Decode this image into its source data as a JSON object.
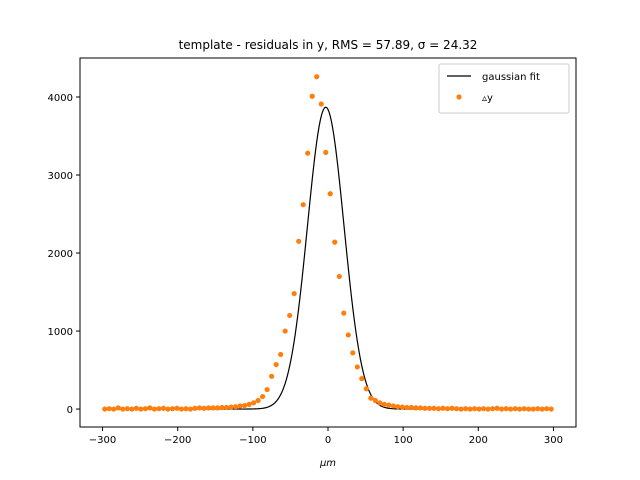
{
  "chart_data": {
    "type": "scatter",
    "title": "template - residuals in y, RMS = 57.89, σ = 24.32",
    "xlabel": "μm",
    "ylabel": "",
    "xlim": [
      -330,
      330
    ],
    "ylim": [
      -230,
      4500
    ],
    "xticks": [
      -300,
      -200,
      -100,
      0,
      100,
      200,
      300
    ],
    "yticks": [
      0,
      1000,
      2000,
      3000,
      4000
    ],
    "xtick_labels": [
      "−300",
      "−200",
      "−100",
      "0",
      "100",
      "200",
      "300"
    ],
    "ytick_labels": [
      "0",
      "1000",
      "2000",
      "3000",
      "4000"
    ],
    "grid": false,
    "legend_position": "top-right",
    "colors": {
      "fit": "#000000",
      "points": "#ff7f0e"
    },
    "series": [
      {
        "name": "gaussian fit",
        "kind": "line",
        "amplitude": 3870,
        "mean": -3,
        "sigma": 24.32
      },
      {
        "name": "▵y",
        "kind": "scatter",
        "x": [
          -297,
          -291,
          -285,
          -279,
          -273,
          -267,
          -261,
          -255,
          -249,
          -243,
          -237,
          -231,
          -225,
          -219,
          -213,
          -207,
          -201,
          -195,
          -189,
          -183,
          -177,
          -171,
          -165,
          -159,
          -153,
          -147,
          -141,
          -135,
          -129,
          -123,
          -117,
          -111,
          -105,
          -99,
          -93,
          -87,
          -81,
          -75,
          -69,
          -63,
          -57,
          -51,
          -45,
          -39,
          -33,
          -27,
          -21,
          -15,
          -9,
          -3,
          3,
          9,
          15,
          21,
          27,
          33,
          39,
          45,
          51,
          57,
          63,
          69,
          75,
          81,
          87,
          93,
          99,
          105,
          111,
          117,
          123,
          129,
          135,
          141,
          147,
          153,
          159,
          165,
          171,
          177,
          183,
          189,
          195,
          201,
          207,
          213,
          219,
          225,
          231,
          237,
          243,
          249,
          255,
          261,
          267,
          273,
          279,
          285,
          291,
          297
        ],
        "y": [
          0,
          5,
          0,
          15,
          0,
          5,
          0,
          10,
          0,
          5,
          15,
          0,
          5,
          10,
          0,
          5,
          10,
          0,
          5,
          0,
          10,
          15,
          10,
          15,
          15,
          15,
          20,
          20,
          25,
          30,
          40,
          45,
          60,
          80,
          110,
          160,
          250,
          420,
          570,
          700,
          1000,
          1200,
          1480,
          2150,
          2620,
          3280,
          4010,
          4260,
          3910,
          3290,
          2760,
          2140,
          1700,
          1230,
          950,
          720,
          540,
          390,
          260,
          140,
          110,
          80,
          60,
          50,
          40,
          30,
          25,
          20,
          20,
          15,
          15,
          10,
          10,
          10,
          5,
          10,
          5,
          10,
          5,
          0,
          5,
          0,
          5,
          0,
          5,
          0,
          5,
          10,
          0,
          5,
          0,
          5,
          0,
          5,
          0,
          0,
          5,
          0,
          5,
          0
        ]
      }
    ]
  }
}
